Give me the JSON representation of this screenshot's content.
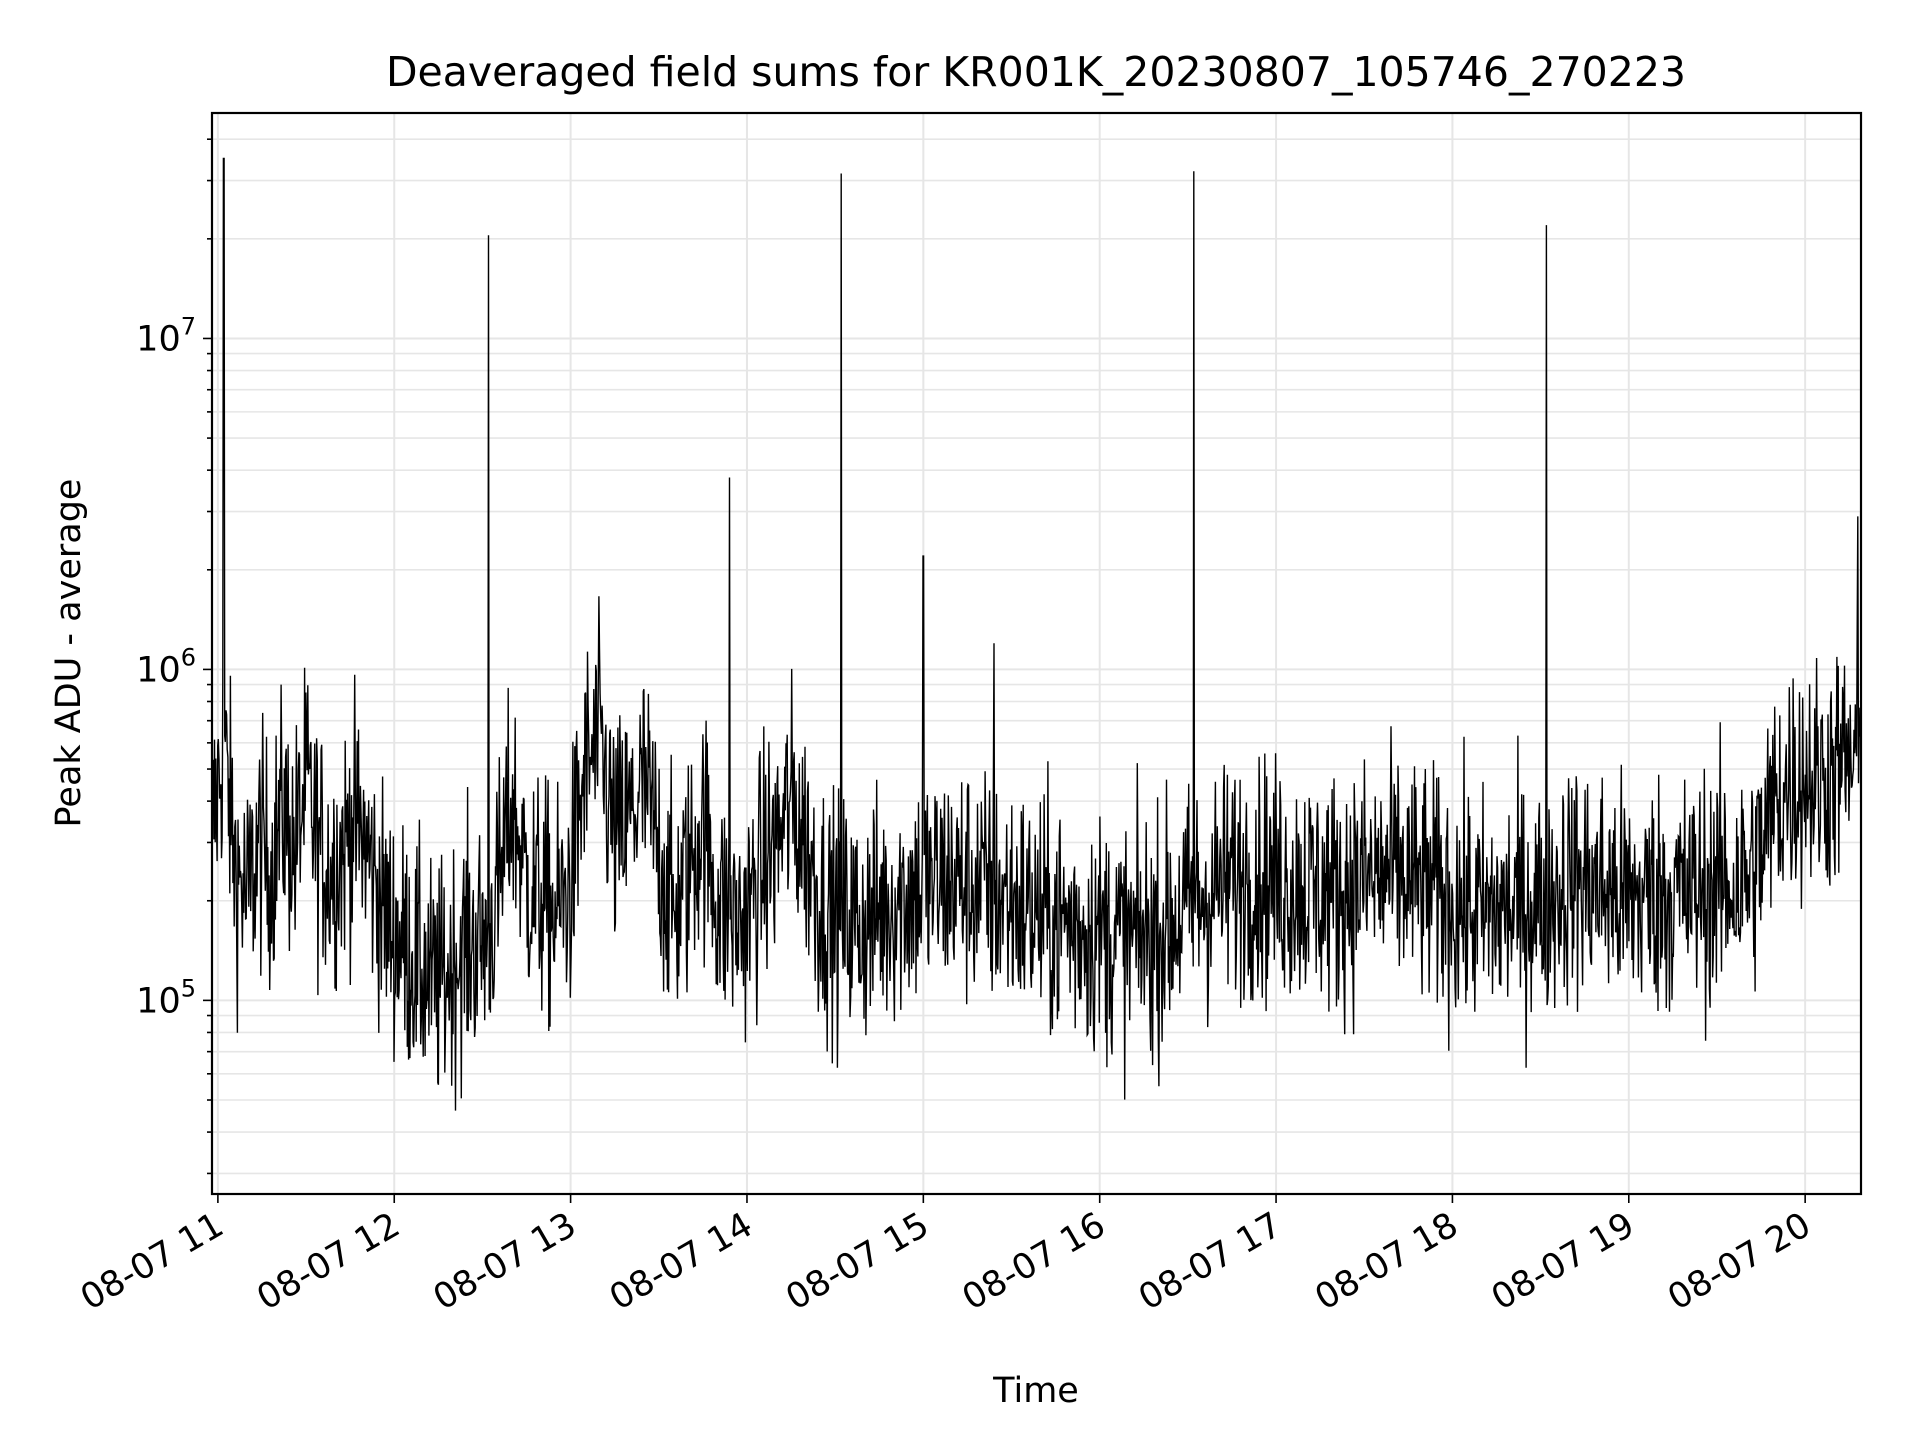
{
  "chart_data": {
    "type": "line",
    "title": "Deaveraged field sums for KR001K_20230807_105746_270223",
    "xlabel": "Time",
    "ylabel": "Peak ADU - average",
    "x_ticks": [
      "08-07 11",
      "08-07 12",
      "08-07 13",
      "08-07 14",
      "08-07 15",
      "08-07 16",
      "08-07 17",
      "08-07 18",
      "08-07 19",
      "08-07 20"
    ],
    "y_ticks": [
      {
        "base": "10",
        "exp": "5",
        "value": 100000
      },
      {
        "base": "10",
        "exp": "6",
        "value": 1000000
      },
      {
        "base": "10",
        "exp": "7",
        "value": 10000000
      }
    ],
    "xlim": [
      "2023-08-07 10:58",
      "2023-08-07 20:19"
    ],
    "ylim": [
      26000,
      48000000
    ],
    "yscale": "log",
    "grid": true,
    "line_color": "#000000",
    "grid_color": "#e6e6e6",
    "series": [
      {
        "x": [
          "2023-08-07 10:58",
          "2023-08-07 11:02",
          "2023-08-07 11:06",
          "2023-08-07 11:10",
          "2023-08-07 11:14",
          "2023-08-07 11:18",
          "2023-08-07 11:22",
          "2023-08-07 11:26",
          "2023-08-07 11:30",
          "2023-08-07 11:34",
          "2023-08-07 11:38",
          "2023-08-07 11:42",
          "2023-08-07 11:46",
          "2023-08-07 11:50",
          "2023-08-07 11:54",
          "2023-08-07 11:58",
          "2023-08-07 12:05",
          "2023-08-07 12:10",
          "2023-08-07 12:15",
          "2023-08-07 12:20",
          "2023-08-07 12:25",
          "2023-08-07 12:30",
          "2023-08-07 12:35",
          "2023-08-07 12:40",
          "2023-08-07 12:45",
          "2023-08-07 12:50",
          "2023-08-07 12:55",
          "2023-08-07 13:00",
          "2023-08-07 13:05",
          "2023-08-07 13:10",
          "2023-08-07 13:15",
          "2023-08-07 13:20",
          "2023-08-07 13:25",
          "2023-08-07 13:30",
          "2023-08-07 13:35",
          "2023-08-07 13:40",
          "2023-08-07 13:45",
          "2023-08-07 13:50",
          "2023-08-07 13:55",
          "2023-08-07 14:00",
          "2023-08-07 14:05",
          "2023-08-07 14:10",
          "2023-08-07 14:15",
          "2023-08-07 14:20",
          "2023-08-07 14:25",
          "2023-08-07 14:30",
          "2023-08-07 14:40",
          "2023-08-07 14:50",
          "2023-08-07 15:00",
          "2023-08-07 15:10",
          "2023-08-07 15:20",
          "2023-08-07 15:30",
          "2023-08-07 15:40",
          "2023-08-07 15:50",
          "2023-08-07 16:00",
          "2023-08-07 16:10",
          "2023-08-07 16:20",
          "2023-08-07 16:30",
          "2023-08-07 16:40",
          "2023-08-07 16:50",
          "2023-08-07 17:00",
          "2023-08-07 17:10",
          "2023-08-07 17:20",
          "2023-08-07 17:30",
          "2023-08-07 17:40",
          "2023-08-07 17:50",
          "2023-08-07 18:00",
          "2023-08-07 18:10",
          "2023-08-07 18:20",
          "2023-08-07 18:30",
          "2023-08-07 18:40",
          "2023-08-07 18:50",
          "2023-08-07 19:00",
          "2023-08-07 19:10",
          "2023-08-07 19:20",
          "2023-08-07 19:30",
          "2023-08-07 19:40",
          "2023-08-07 19:45",
          "2023-08-07 19:50",
          "2023-08-07 19:55",
          "2023-08-07 20:00",
          "2023-08-07 20:05",
          "2023-08-07 20:10",
          "2023-08-07 20:15",
          "2023-08-07 20:19"
        ],
        "y": [
          320000,
          600000,
          250000,
          200000,
          300000,
          250000,
          380000,
          280000,
          450000,
          300000,
          250000,
          280000,
          350000,
          300000,
          220000,
          170000,
          140000,
          120000,
          110000,
          130000,
          150000,
          150000,
          200000,
          400000,
          230000,
          200000,
          180000,
          220000,
          500000,
          600000,
          300000,
          350000,
          450000,
          280000,
          180000,
          240000,
          350000,
          200000,
          170000,
          180000,
          250000,
          300000,
          400000,
          300000,
          200000,
          180000,
          170000,
          200000,
          220000,
          230000,
          220000,
          200000,
          180000,
          170000,
          160000,
          150000,
          160000,
          190000,
          220000,
          240000,
          230000,
          220000,
          210000,
          230000,
          240000,
          220000,
          200000,
          180000,
          190000,
          200000,
          230000,
          220000,
          200000,
          210000,
          210000,
          220000,
          230000,
          280000,
          400000,
          450000,
          480000,
          460000,
          500000,
          520000,
          540000
        ]
      }
    ],
    "spikes": [
      {
        "x": "2023-08-07 11:02",
        "y": 35000000
      },
      {
        "x": "2023-08-07 12:32",
        "y": 20500000
      },
      {
        "x": "2023-08-07 13:54",
        "y": 3800000
      },
      {
        "x": "2023-08-07 14:32",
        "y": 31500000
      },
      {
        "x": "2023-08-07 15:00",
        "y": 2200000
      },
      {
        "x": "2023-08-07 15:24",
        "y": 1200000
      },
      {
        "x": "2023-08-07 16:32",
        "y": 32000000
      },
      {
        "x": "2023-08-07 18:32",
        "y": 22000000
      },
      {
        "x": "2023-08-07 20:18",
        "y": 2900000
      }
    ]
  }
}
